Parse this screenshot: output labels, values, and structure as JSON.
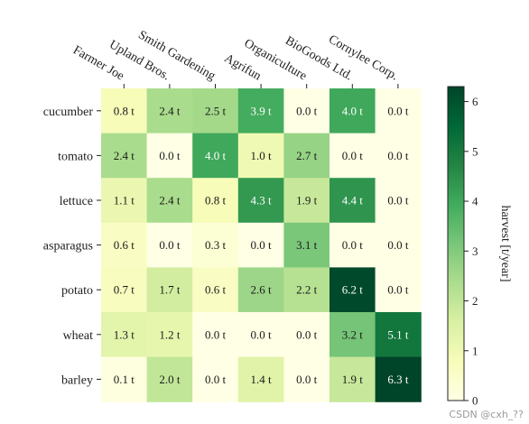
{
  "chart_data": {
    "type": "heatmap",
    "x_categories": [
      "Farmer Joe",
      "Upland Bros.",
      "Smith Gardening",
      "Agrifun",
      "Organiculture",
      "BioGoods Ltd.",
      "Cornylee Corp."
    ],
    "y_categories": [
      "cucumber",
      "tomato",
      "lettuce",
      "asparagus",
      "potato",
      "wheat",
      "barley"
    ],
    "values": [
      [
        0.8,
        2.4,
        2.5,
        3.9,
        0.0,
        4.0,
        0.0
      ],
      [
        2.4,
        0.0,
        4.0,
        1.0,
        2.7,
        0.0,
        0.0
      ],
      [
        1.1,
        2.4,
        0.8,
        4.3,
        1.9,
        4.4,
        0.0
      ],
      [
        0.6,
        0.0,
        0.3,
        0.0,
        3.1,
        0.0,
        0.0
      ],
      [
        0.7,
        1.7,
        0.6,
        2.6,
        2.2,
        6.2,
        0.0
      ],
      [
        1.3,
        1.2,
        0.0,
        0.0,
        0.0,
        3.2,
        5.1
      ],
      [
        0.1,
        2.0,
        0.0,
        1.4,
        0.0,
        1.9,
        6.3
      ]
    ],
    "cell_label_suffix": " t",
    "colormap": "YlGn",
    "x_axis_position": "top",
    "x_tick_rotation": -30,
    "colorbar": {
      "label": "harvest [t/year]",
      "vmin": 0,
      "vmax": 6.3,
      "ticks": [
        0,
        1,
        2,
        3,
        4,
        5,
        6
      ],
      "position": "right"
    },
    "grid": false,
    "title": ""
  },
  "watermark": "CSDN @cxh_??"
}
